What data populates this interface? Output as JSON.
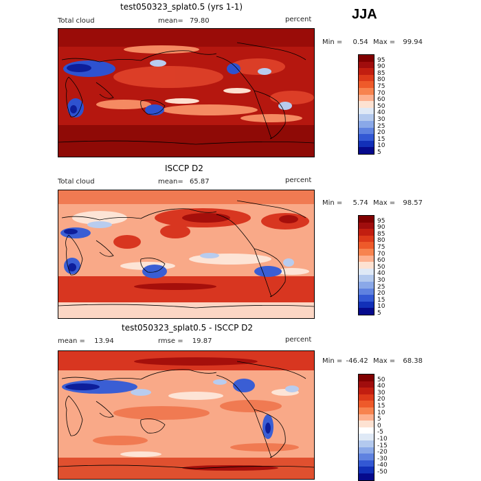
{
  "season": "JJA",
  "panels": [
    {
      "title": "test050323_splat0.5 (yrs 1-1)",
      "left_label": "Total cloud",
      "center_label": "mean=",
      "center_value": "79.80",
      "right_label": "percent",
      "stats_min": "0.54",
      "stats_max": "99.94",
      "colorbar_labels": [
        "95",
        "90",
        "85",
        "80",
        "75",
        "70",
        "60",
        "50",
        "40",
        "30",
        "25",
        "20",
        "15",
        "10",
        "5"
      ],
      "colorbar_colors": [
        "#800000",
        "#a00d0d",
        "#c21e10",
        "#dd3a1a",
        "#ee5a2a",
        "#f7834f",
        "#fdb08f",
        "#fde2d2",
        "#dfe9f6",
        "#b3c9ee",
        "#8aa8e8",
        "#5f82e0",
        "#3358d4",
        "#1230b8",
        "#060a8c"
      ]
    },
    {
      "title": "ISCCP D2",
      "left_label": "Total cloud",
      "center_label": "mean=",
      "center_value": "65.87",
      "right_label": "percent",
      "stats_min": "5.74",
      "stats_max": "98.57",
      "colorbar_labels": [
        "95",
        "90",
        "85",
        "80",
        "75",
        "70",
        "60",
        "50",
        "40",
        "30",
        "25",
        "20",
        "15",
        "10",
        "5"
      ],
      "colorbar_colors": [
        "#800000",
        "#a00d0d",
        "#c21e10",
        "#dd3a1a",
        "#ee5a2a",
        "#f7834f",
        "#fdb08f",
        "#fde2d2",
        "#dfe9f6",
        "#b3c9ee",
        "#8aa8e8",
        "#5f82e0",
        "#3358d4",
        "#1230b8",
        "#060a8c"
      ]
    },
    {
      "title": "test050323_splat0.5 - ISCCP D2",
      "left_label": "mean =",
      "left_value": "13.94",
      "center_label": "rmse =",
      "center_value": "19.87",
      "right_label": "percent",
      "stats_min": "-46.42",
      "stats_max": "68.38",
      "colorbar_labels": [
        "50",
        "40",
        "30",
        "20",
        "15",
        "10",
        "5",
        "0",
        "-5",
        "-10",
        "-15",
        "-20",
        "-30",
        "-40",
        "-50"
      ],
      "colorbar_colors": [
        "#800000",
        "#a00d0d",
        "#c21e10",
        "#dd3a1a",
        "#ee5a2a",
        "#f7834f",
        "#fdb08f",
        "#fde2d2",
        "#ffffff",
        "#dfe9f6",
        "#b3c9ee",
        "#8aa8e8",
        "#5f82e0",
        "#3358d4",
        "#1230b8",
        "#060a8c"
      ]
    }
  ],
  "labels": {
    "min": "Min =",
    "max": "Max ="
  }
}
